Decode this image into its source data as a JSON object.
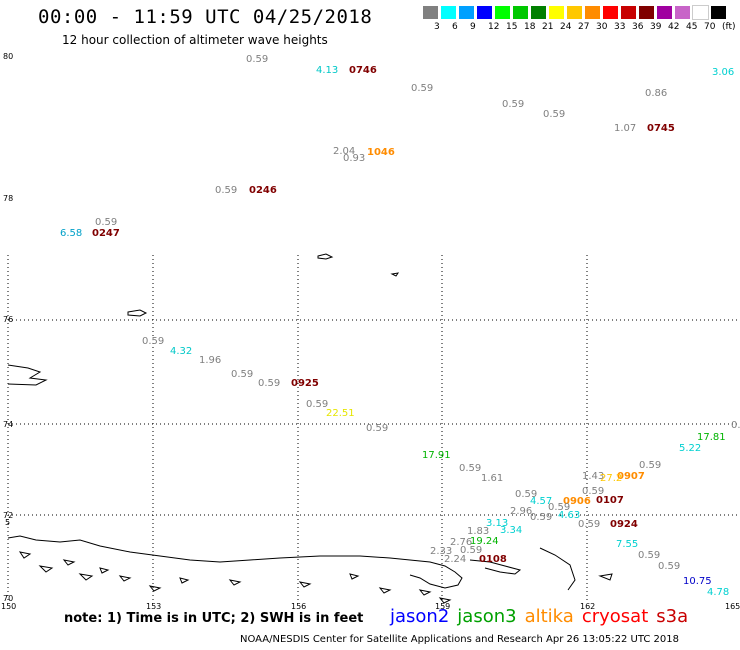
{
  "title": "00:00 - 11:59 UTC 04/25/2018",
  "subtitle": "12 hour collection of altimeter wave heights",
  "legend": {
    "colors": [
      "#808080",
      "#00ffff",
      "#00a0ff",
      "#0000ff",
      "#00ff00",
      "#00c800",
      "#008000",
      "#ffff00",
      "#ffc800",
      "#ff8c00",
      "#ff0000",
      "#c80000",
      "#800000",
      "#a000a0",
      "#c864c8",
      "#ffffff",
      "#000000"
    ],
    "ticks": [
      "3",
      "6",
      "9",
      "12",
      "15",
      "18",
      "21",
      "24",
      "27",
      "30",
      "33",
      "36",
      "39",
      "42",
      "45",
      "70",
      "(ft)"
    ]
  },
  "axes": {
    "lat_labels": [
      "80",
      "78",
      "76",
      "74",
      "72",
      "5",
      "70"
    ],
    "lon_labels": [
      "150",
      "153",
      "156",
      "159",
      "162",
      "165"
    ]
  },
  "observations": [
    {
      "text": "0.59",
      "color": "#808080"
    },
    {
      "text": "4.13",
      "color": "#00c8c8"
    },
    {
      "text": "0746",
      "color": "#800000"
    },
    {
      "text": "3.06",
      "color": "#00d0d0"
    },
    {
      "text": "0.59",
      "color": "#808080"
    },
    {
      "text": "0.59",
      "color": "#808080"
    },
    {
      "text": "0.59",
      "color": "#808080"
    },
    {
      "text": "0.86",
      "color": "#808080"
    },
    {
      "text": "1.07",
      "color": "#808080"
    },
    {
      "text": "0745",
      "color": "#800000"
    },
    {
      "text": "2.04",
      "color": "#808080"
    },
    {
      "text": "0.93",
      "color": "#808080"
    },
    {
      "text": "1046",
      "color": "#ff8c00"
    },
    {
      "text": "0.59",
      "color": "#808080"
    },
    {
      "text": "0246",
      "color": "#800000"
    },
    {
      "text": "0.59",
      "color": "#808080"
    },
    {
      "text": "6.58",
      "color": "#00a0c8"
    },
    {
      "text": "0247",
      "color": "#800000"
    },
    {
      "text": "0.59",
      "color": "#808080"
    },
    {
      "text": "4.32",
      "color": "#00c8c8"
    },
    {
      "text": "1.96",
      "color": "#808080"
    },
    {
      "text": "0.59",
      "color": "#808080"
    },
    {
      "text": "0.59",
      "color": "#808080"
    },
    {
      "text": "0925",
      "color": "#800000"
    },
    {
      "text": "0.59",
      "color": "#808080"
    },
    {
      "text": "22.51",
      "color": "#e6e600"
    },
    {
      "text": "0.59",
      "color": "#808080"
    },
    {
      "text": "0.",
      "color": "#808080"
    },
    {
      "text": "17.81",
      "color": "#00b400"
    },
    {
      "text": "5.22",
      "color": "#00d0d0"
    },
    {
      "text": "17.91",
      "color": "#00b400"
    },
    {
      "text": "0.59",
      "color": "#808080"
    },
    {
      "text": "1.61",
      "color": "#808080"
    },
    {
      "text": "0.59",
      "color": "#808080"
    },
    {
      "text": "1.43",
      "color": "#808080"
    },
    {
      "text": "0.59",
      "color": "#808080"
    },
    {
      "text": "0907",
      "color": "#ff8c00"
    },
    {
      "text": "27.2",
      "color": "#ffc800"
    },
    {
      "text": "0.59",
      "color": "#808080"
    },
    {
      "text": "4.57",
      "color": "#00d0d0"
    },
    {
      "text": "0906",
      "color": "#ff8c00"
    },
    {
      "text": "0.59",
      "color": "#808080"
    },
    {
      "text": "0107",
      "color": "#800000"
    },
    {
      "text": "2.96",
      "color": "#808080"
    },
    {
      "text": "0.59",
      "color": "#808080"
    },
    {
      "text": "4.63",
      "color": "#00d0d0"
    },
    {
      "text": "3.13",
      "color": "#00d0d0"
    },
    {
      "text": "3.34",
      "color": "#00d0d0"
    },
    {
      "text": "0.59",
      "color": "#808080"
    },
    {
      "text": "0924",
      "color": "#800000"
    },
    {
      "text": "1.83",
      "color": "#808080"
    },
    {
      "text": "2.76",
      "color": "#808080"
    },
    {
      "text": "19.24",
      "color": "#00b400"
    },
    {
      "text": "7.55",
      "color": "#00d0d0"
    },
    {
      "text": "2.33",
      "color": "#808080"
    },
    {
      "text": "0.59",
      "color": "#808080"
    },
    {
      "text": "0.59",
      "color": "#808080"
    },
    {
      "text": "2.24",
      "color": "#808080"
    },
    {
      "text": "0108",
      "color": "#800000"
    },
    {
      "text": "0.59",
      "color": "#808080"
    },
    {
      "text": "10.75",
      "color": "#0000c8"
    },
    {
      "text": "4.78",
      "color": "#00d0d0"
    }
  ],
  "note": "note: 1) Time is in UTC; 2) SWH is in feet",
  "satellites": [
    {
      "name": "jason2",
      "color": "#0000ff"
    },
    {
      "name": "jason3",
      "color": "#00a000"
    },
    {
      "name": "altika",
      "color": "#ff8c00"
    },
    {
      "name": "cryosat",
      "color": "#ff0000"
    },
    {
      "name": "s3a",
      "color": "#c80000"
    }
  ],
  "credit": "NOAA/NESDIS Center for Satellite Applications and Research   Apr 26 13:05:22 UTC 2018"
}
